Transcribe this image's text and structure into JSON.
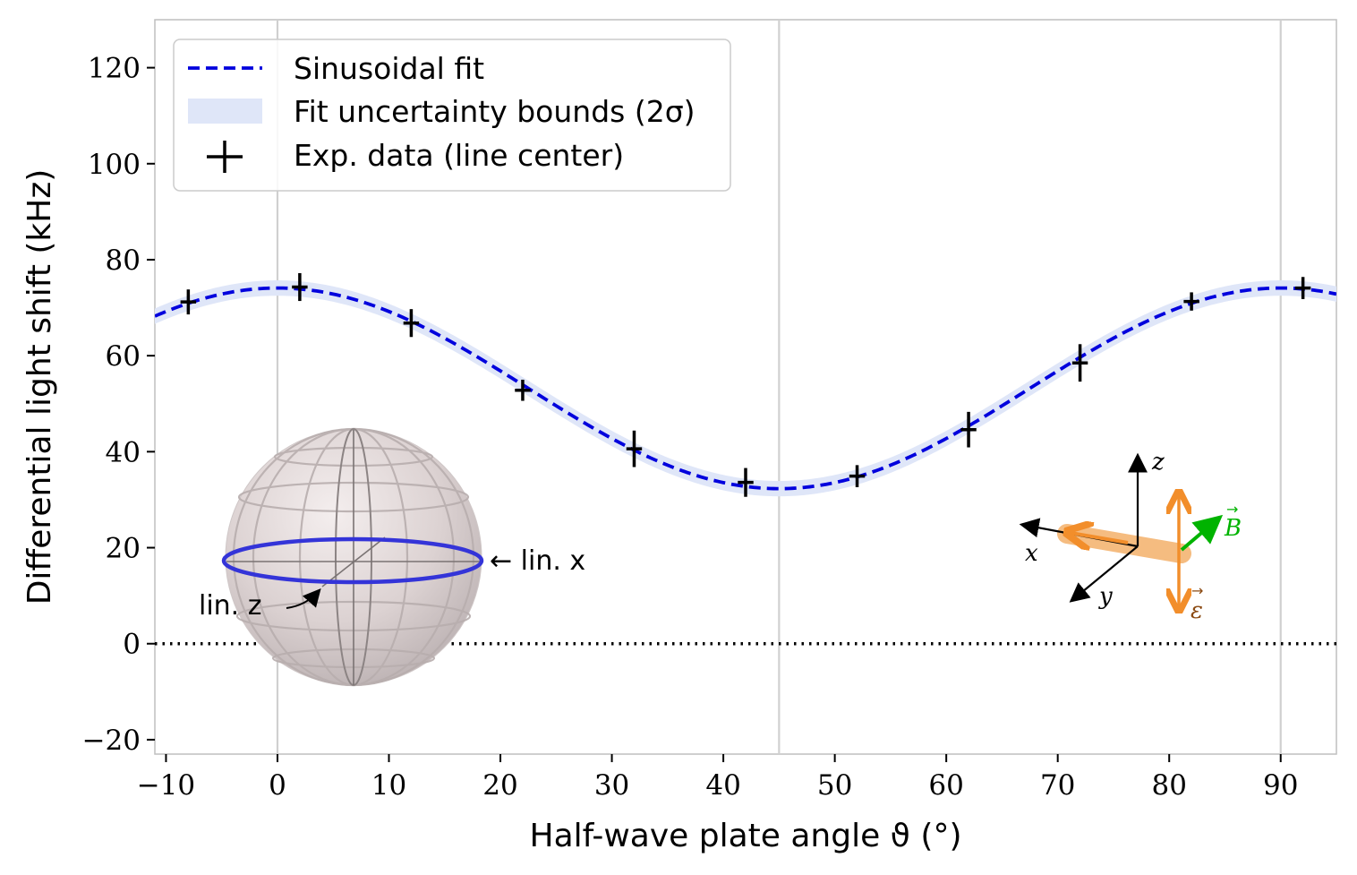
{
  "chart_data": {
    "type": "scatter",
    "xlabel": "Half-wave plate angle ϑ (°)",
    "ylabel": "Differential light shift (kHz)",
    "xlim": [
      -11,
      95
    ],
    "ylim": [
      -23,
      130
    ],
    "xticks": [
      -10,
      0,
      10,
      20,
      30,
      40,
      50,
      60,
      70,
      80,
      90
    ],
    "yticks": [
      -20,
      0,
      20,
      40,
      60,
      80,
      100,
      120
    ],
    "grid": "vertical lines at 0, 45, 90",
    "vlines": [
      0,
      45,
      90
    ],
    "hline": 0,
    "legend": {
      "placement": "upper-left",
      "entries": [
        {
          "label": "Sinusoidal fit",
          "style": "dashed-line",
          "color": "#0000dd"
        },
        {
          "label": "Fit uncertainty bounds (2σ)",
          "style": "band",
          "color": "#dfe6f8"
        },
        {
          "label": "Exp. data (line center)",
          "style": "cross",
          "color": "#000000"
        }
      ]
    },
    "fit": {
      "name": "Sinusoidal fit",
      "model": "offset + amplitude * cos(4 * theta)",
      "offset": 53.2,
      "amplitude": 20.9,
      "band_half_width": 1.6,
      "color": "#0000dd"
    },
    "series": [
      {
        "name": "Exp. data (line center)",
        "x": [
          -8,
          2,
          12,
          22,
          32,
          42,
          52,
          62,
          72,
          82,
          92
        ],
        "y": [
          71.2,
          74.3,
          66.8,
          52.8,
          40.6,
          33.6,
          34.9,
          44.6,
          58.5,
          71.3,
          74.1
        ],
        "yerr": [
          2.6,
          2.9,
          2.9,
          2.2,
          3.8,
          3.0,
          2.3,
          3.7,
          3.9,
          1.9,
          2.3
        ],
        "xerr": [
          0.7,
          0.7,
          0.7,
          0.7,
          0.7,
          0.7,
          0.7,
          0.7,
          0.7,
          0.7,
          0.7
        ]
      }
    ]
  },
  "annotations": {
    "lin_x": "← lin. x",
    "lin_z": "lin. z"
  },
  "inset": {
    "axis_x": "x",
    "axis_y": "y",
    "axis_z": "z",
    "b_field": "B",
    "e_field": "ε",
    "colors": {
      "beam": "#f5b97a",
      "polarization": "#f28e2b",
      "b_field": "#00b300",
      "e_label": "#8b4a12"
    }
  }
}
